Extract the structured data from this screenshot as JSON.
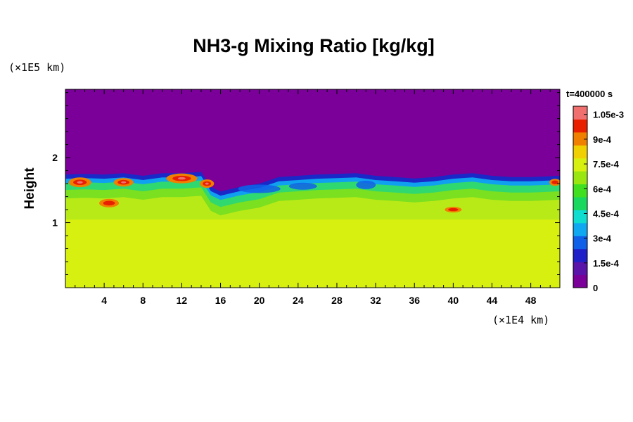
{
  "chart_data": {
    "type": "heatmap",
    "title": "NH3-g Mixing Ratio [kg/kg]",
    "time_label": "t=400000 s",
    "xlabel": "",
    "ylabel": "Height",
    "x_unit": "(×1E4 km)",
    "y_unit": "(×1E5 km)",
    "xlim": [
      0,
      51
    ],
    "ylim": [
      0,
      3.05
    ],
    "x_ticks": [
      4,
      8,
      12,
      16,
      20,
      24,
      28,
      32,
      36,
      40,
      44,
      48
    ],
    "y_ticks": [
      1,
      2
    ],
    "colorbar": {
      "ticks": [
        "0",
        "1.5e-4",
        "3e-4",
        "4.5e-4",
        "6e-4",
        "7.5e-4",
        "9e-4",
        "1.05e-3"
      ],
      "tick_values": [
        0,
        0.00015,
        0.0003,
        0.00045,
        0.0006,
        0.00075,
        0.0009,
        0.00105
      ],
      "range": [
        0,
        0.0011
      ],
      "colors": [
        "#7a0099",
        "#5a14aa",
        "#2020c8",
        "#1060e8",
        "#10a8f0",
        "#10dcd0",
        "#18d860",
        "#40e020",
        "#9ae610",
        "#d8f010",
        "#f0d000",
        "#f08000",
        "#e82000",
        "#f07070"
      ]
    },
    "fields": {
      "upper_value": 0,
      "lower_value": 0.00076,
      "top_height_profile": {
        "x": [
          0,
          2,
          4,
          6,
          8,
          10,
          12,
          14,
          15,
          16,
          18,
          20,
          22,
          24,
          26,
          28,
          30,
          32,
          34,
          36,
          38,
          40,
          42,
          44,
          46,
          48,
          51
        ],
        "h": [
          1.74,
          1.75,
          1.74,
          1.76,
          1.72,
          1.76,
          1.76,
          1.78,
          1.55,
          1.48,
          1.55,
          1.6,
          1.7,
          1.72,
          1.74,
          1.75,
          1.76,
          1.72,
          1.7,
          1.68,
          1.7,
          1.74,
          1.76,
          1.72,
          1.7,
          1.7,
          1.72
        ]
      },
      "mixed_layer_bottom": 1.05
    }
  }
}
